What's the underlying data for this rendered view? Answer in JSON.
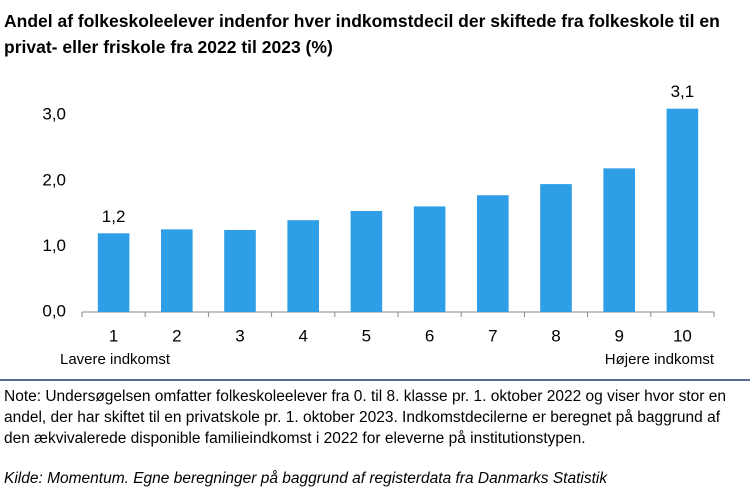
{
  "chart_data": {
    "type": "bar",
    "title": "Andel af folkeskoleelever indenfor hver indkomstdecil der skiftede fra folkeskole til en privat- eller friskole fra 2022 til 2023 (%)",
    "categories": [
      "1",
      "2",
      "3",
      "4",
      "5",
      "6",
      "7",
      "8",
      "9",
      "10"
    ],
    "values": [
      1.2,
      1.26,
      1.25,
      1.4,
      1.54,
      1.61,
      1.78,
      1.95,
      2.19,
      3.1
    ],
    "value_labels": [
      "1,2",
      null,
      null,
      null,
      null,
      null,
      null,
      null,
      null,
      "3,1"
    ],
    "color": "#2e9ee6",
    "ylim": [
      0,
      3.4
    ],
    "yticks": [
      {
        "value": 0,
        "label": "0,0"
      },
      {
        "value": 1,
        "label": "1,0"
      },
      {
        "value": 2,
        "label": "2,0"
      },
      {
        "value": 3,
        "label": "3,0"
      }
    ],
    "grid": false,
    "annotations": [
      "Lavere indkomst",
      "Højere indkomst"
    ],
    "note": "Note: Undersøgelsen omfatter folkeskoleelever fra 0. til 8. klasse pr. 1. oktober 2022 og viser hvor stor en andel, der har skiftet til en privatskole pr. 1. oktober 2023. Indkomstdecilerne er beregnet på baggrund af den ækvivalerede disponible familieindkomst i 2022 for eleverne på institutionstypen.",
    "source": "Kilde: Momentum. Egne beregninger på baggrund af registerdata fra Danmarks Statistik"
  }
}
